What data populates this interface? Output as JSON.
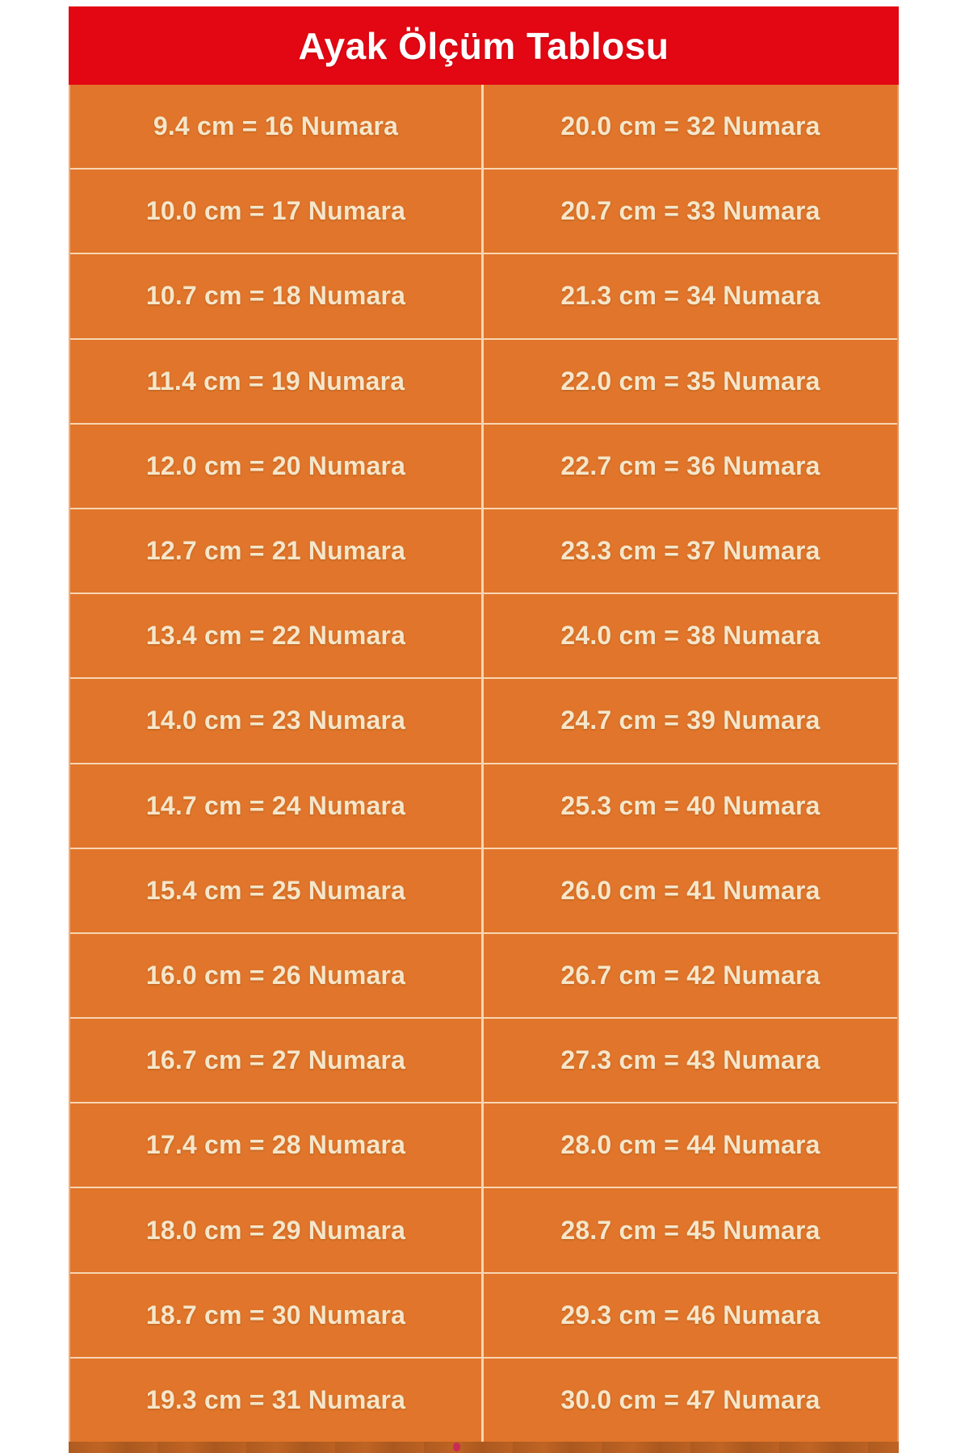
{
  "header": {
    "title": "Ayak Ölçüm Tablosu",
    "background": "#e30613",
    "text_color": "#ffffff"
  },
  "table": {
    "background": "#e0752b",
    "text_color": "#f5e6ca",
    "divider_color": "#ffeed6",
    "rows": [
      {
        "left": "9.4 cm = 16 Numara",
        "right": "20.0 cm = 32 Numara"
      },
      {
        "left": "10.0 cm = 17 Numara",
        "right": "20.7 cm = 33 Numara"
      },
      {
        "left": "10.7 cm = 18 Numara",
        "right": "21.3 cm = 34 Numara"
      },
      {
        "left": "11.4 cm = 19 Numara",
        "right": "22.0 cm = 35 Numara"
      },
      {
        "left": "12.0 cm = 20 Numara",
        "right": "22.7 cm = 36 Numara"
      },
      {
        "left": "12.7 cm = 21 Numara",
        "right": "23.3 cm = 37 Numara"
      },
      {
        "left": "13.4 cm = 22 Numara",
        "right": "24.0 cm = 38 Numara"
      },
      {
        "left": "14.0 cm = 23 Numara",
        "right": "24.7 cm = 39 Numara"
      },
      {
        "left": "14.7 cm = 24 Numara",
        "right": "25.3 cm = 40 Numara"
      },
      {
        "left": "15.4 cm = 25 Numara",
        "right": "26.0 cm = 41 Numara"
      },
      {
        "left": "16.0 cm = 26 Numara",
        "right": "26.7 cm = 42 Numara"
      },
      {
        "left": "16.7 cm = 27 Numara",
        "right": "27.3 cm = 43 Numara"
      },
      {
        "left": "17.4 cm = 28 Numara",
        "right": "28.0 cm = 44 Numara"
      },
      {
        "left": "18.0 cm = 29 Numara",
        "right": "28.7 cm = 45 Numara"
      },
      {
        "left": "18.7 cm = 30 Numara",
        "right": "29.3 cm = 46 Numara"
      },
      {
        "left": "19.3 cm = 31 Numara",
        "right": "30.0 cm = 47 Numara"
      }
    ]
  },
  "footer": {
    "background": "#bf6424",
    "dot_color": "#c92a57"
  },
  "chart_data": {
    "type": "table",
    "title": "Ayak Ölçüm Tablosu",
    "columns": [
      "cm",
      "Numara"
    ],
    "rows": [
      [
        9.4,
        16
      ],
      [
        10.0,
        17
      ],
      [
        10.7,
        18
      ],
      [
        11.4,
        19
      ],
      [
        12.0,
        20
      ],
      [
        12.7,
        21
      ],
      [
        13.4,
        22
      ],
      [
        14.0,
        23
      ],
      [
        14.7,
        24
      ],
      [
        15.4,
        25
      ],
      [
        16.0,
        26
      ],
      [
        16.7,
        27
      ],
      [
        17.4,
        28
      ],
      [
        18.0,
        29
      ],
      [
        18.7,
        30
      ],
      [
        19.3,
        31
      ],
      [
        20.0,
        32
      ],
      [
        20.7,
        33
      ],
      [
        21.3,
        34
      ],
      [
        22.0,
        35
      ],
      [
        22.7,
        36
      ],
      [
        23.3,
        37
      ],
      [
        24.0,
        38
      ],
      [
        24.7,
        39
      ],
      [
        25.3,
        40
      ],
      [
        26.0,
        41
      ],
      [
        26.7,
        42
      ],
      [
        27.3,
        43
      ],
      [
        28.0,
        44
      ],
      [
        28.7,
        45
      ],
      [
        29.3,
        46
      ],
      [
        30.0,
        47
      ]
    ],
    "layout": {
      "columns_in_image": 2,
      "rows_in_image": 16,
      "legend_position": "none",
      "grid": "on"
    }
  }
}
